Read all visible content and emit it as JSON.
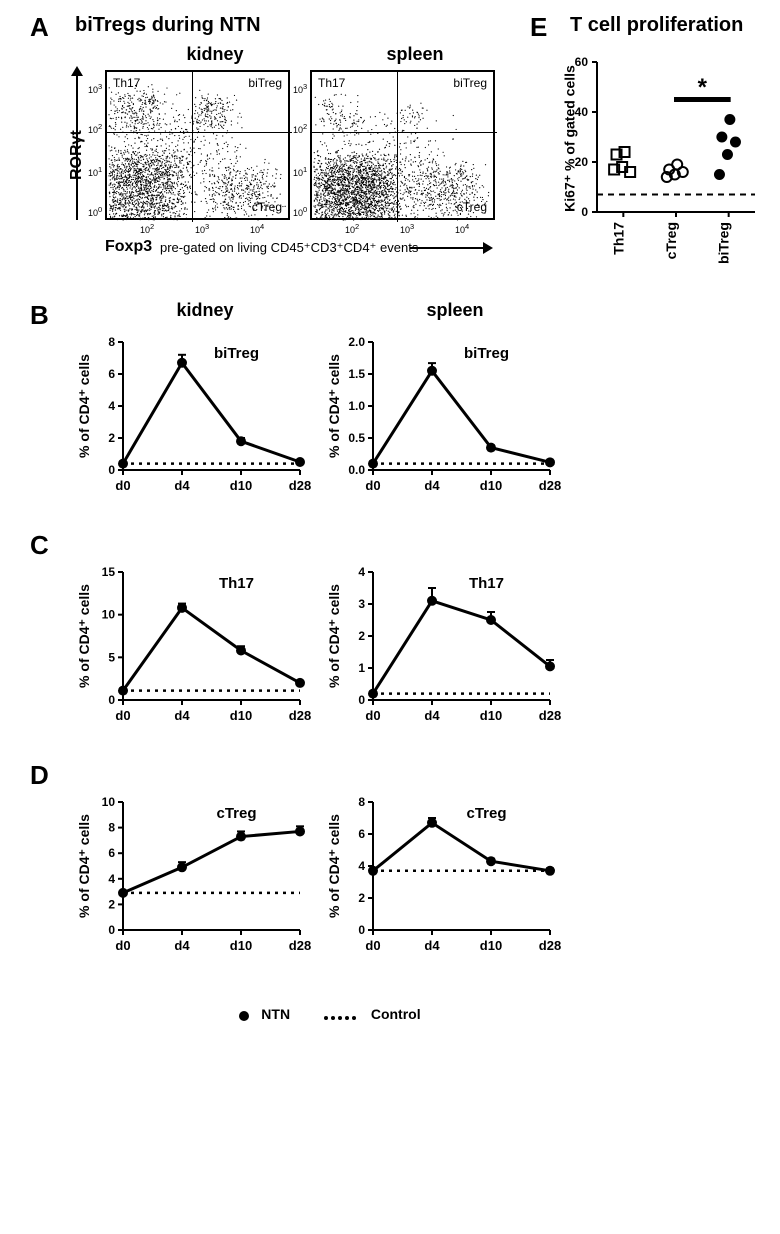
{
  "panelA": {
    "label": "A",
    "title": "biTregs during NTN",
    "columns": [
      "kidney",
      "spleen"
    ],
    "yaxis": "RORγt",
    "xaxis": "Foxp3",
    "xaxis_caption": "pre-gated on living CD45⁺CD3⁺CD4⁺ events",
    "quadrant_labels": {
      "tl": "Th17",
      "tr": "biTreg",
      "br": "cTreg"
    }
  },
  "panelE": {
    "label": "E",
    "title": "T cell proliferation",
    "ylabel": "Ki67⁺ % of gated cells",
    "ylim": [
      0,
      60
    ],
    "yticks": [
      0,
      20,
      40,
      60
    ],
    "categories": [
      "Th17",
      "cTreg",
      "biTreg"
    ],
    "markers": [
      "square-open",
      "circle-open",
      "circle-filled"
    ],
    "data": {
      "Th17": [
        17,
        18,
        16,
        23,
        24
      ],
      "cTreg": [
        14,
        15,
        16,
        17,
        19
      ],
      "biTreg": [
        15,
        23,
        28,
        30,
        37
      ]
    },
    "dashed_line": 7,
    "sig_groups": [
      "cTreg",
      "biTreg"
    ],
    "sig_marker": "*"
  },
  "timecourse": {
    "xaxis_ticks": [
      "d0",
      "d4",
      "d10",
      "d28"
    ],
    "ylabel": "% of CD4⁺ cells",
    "panels": {
      "B": {
        "title": "biTreg",
        "kidney": {
          "ylim": [
            0,
            8
          ],
          "yticks": [
            0,
            2,
            4,
            6,
            8
          ],
          "values": [
            0.4,
            6.7,
            1.8,
            0.5
          ],
          "err": [
            0,
            0.5,
            0.2,
            0.1
          ],
          "baseline": 0.4
        },
        "spleen": {
          "ylim": [
            0,
            2
          ],
          "yticks": [
            0.0,
            0.5,
            1.0,
            1.5,
            2.0
          ],
          "values": [
            0.1,
            1.55,
            0.35,
            0.12
          ],
          "err": [
            0,
            0.12,
            0.03,
            0.02
          ],
          "baseline": 0.1
        }
      },
      "C": {
        "title": "Th17",
        "kidney": {
          "ylim": [
            0,
            15
          ],
          "yticks": [
            0,
            5,
            10,
            15
          ],
          "values": [
            1.1,
            10.8,
            5.8,
            2.0
          ],
          "err": [
            0,
            0.5,
            0.5,
            0.2
          ],
          "baseline": 1.1
        },
        "spleen": {
          "ylim": [
            0,
            4
          ],
          "yticks": [
            0,
            1,
            2,
            3,
            4
          ],
          "values": [
            0.2,
            3.1,
            2.5,
            1.05
          ],
          "err": [
            0,
            0.4,
            0.25,
            0.2
          ],
          "baseline": 0.2
        }
      },
      "D": {
        "title": "cTreg",
        "kidney": {
          "ylim": [
            0,
            10
          ],
          "yticks": [
            0,
            2,
            4,
            6,
            8,
            10
          ],
          "values": [
            2.9,
            4.9,
            7.3,
            7.7
          ],
          "err": [
            0,
            0.4,
            0.4,
            0.4
          ],
          "baseline": 2.9
        },
        "spleen": {
          "ylim": [
            0,
            8
          ],
          "yticks": [
            0,
            2,
            4,
            6,
            8
          ],
          "values": [
            3.7,
            6.7,
            4.3,
            3.7
          ],
          "err": [
            0,
            0.3,
            0.15,
            0.15
          ],
          "baseline": 3.7
        }
      }
    }
  },
  "legend": {
    "ntn": "NTN",
    "control": "Control"
  },
  "style": {
    "line_color": "#000000",
    "marker_fill": "#000000",
    "marker_size": 8,
    "line_width": 2.5,
    "dotted_width": 2,
    "bg": "#ffffff"
  }
}
